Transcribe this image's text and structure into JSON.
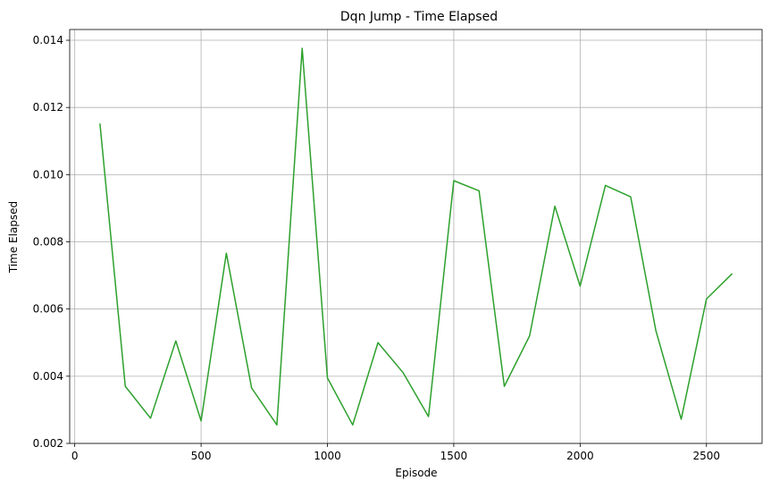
{
  "chart_data": {
    "type": "line",
    "title": "Dqn Jump - Time Elapsed",
    "xlabel": "Episode",
    "ylabel": "Time Elapsed",
    "xlim": [
      -20,
      2720
    ],
    "ylim": [
      0.002,
      0.01432
    ],
    "xticks": [
      0,
      500,
      1000,
      1500,
      2000,
      2500
    ],
    "xtick_labels": [
      "0",
      "500",
      "1000",
      "1500",
      "2000",
      "2500"
    ],
    "yticks": [
      0.002,
      0.004,
      0.006,
      0.008,
      0.01,
      0.012,
      0.014
    ],
    "ytick_labels": [
      "0.002",
      "0.004",
      "0.006",
      "0.008",
      "0.010",
      "0.012",
      "0.014"
    ],
    "grid": true,
    "series": [
      {
        "color": "#2ca02c",
        "x": [
          100,
          200,
          300,
          400,
          500,
          600,
          700,
          800,
          900,
          1000,
          1100,
          1200,
          1300,
          1400,
          1500,
          1600,
          1700,
          1800,
          1900,
          2000,
          2100,
          2200,
          2300,
          2400,
          2500,
          2600
        ],
        "y": [
          0.0115,
          0.0037,
          0.00275,
          0.00505,
          0.00267,
          0.00766,
          0.00365,
          0.00255,
          0.01376,
          0.00395,
          0.00255,
          0.005,
          0.0041,
          0.0028,
          0.00982,
          0.00952,
          0.0037,
          0.0052,
          0.00906,
          0.00668,
          0.00968,
          0.00934,
          0.00535,
          0.00272,
          0.0063,
          0.00704
        ]
      }
    ]
  }
}
